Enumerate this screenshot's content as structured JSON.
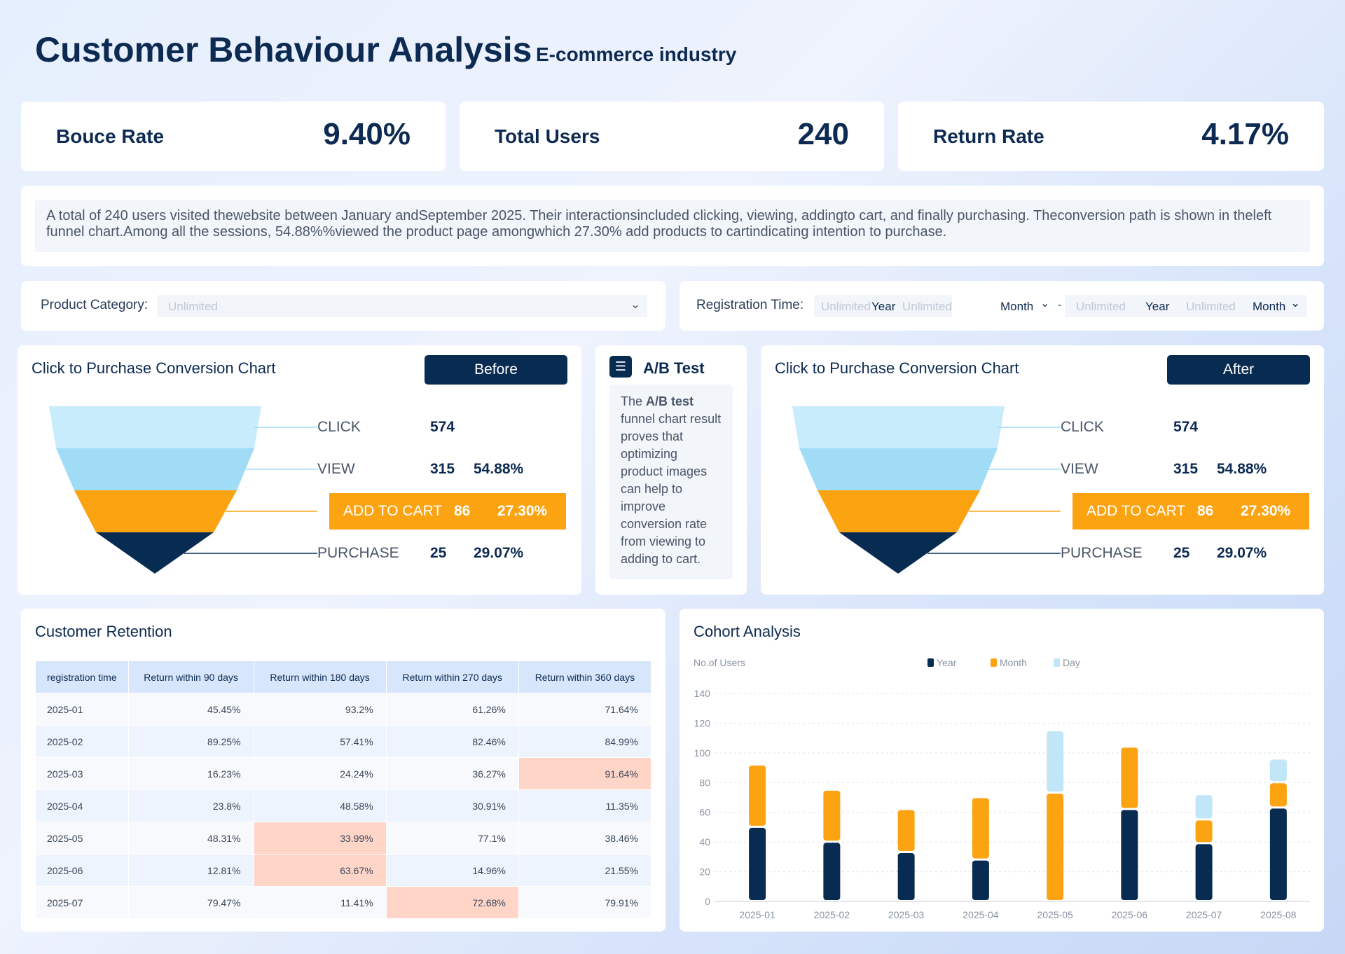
{
  "header": {
    "title": "Customer Behaviour Analysis",
    "subtitle": "E-commerce industry"
  },
  "kpis": [
    {
      "label": "Bouce Rate",
      "value": "9.40%"
    },
    {
      "label": "Total Users",
      "value": "240"
    },
    {
      "label": "Return Rate",
      "value": "4.17%"
    }
  ],
  "description": "A total of 240 users visited thewebsite between January andSeptember 2025. Their interactionsincluded clicking, viewing, addingto cart, and finally purchasing. Theconversion path is shown in theleft funnel chart.Among all the sessions, 54.88%%viewed the product page amongwhich 27.30% add products to cartindicating intention to purchase.",
  "filters": {
    "category_label": "Product Category:",
    "category_placeholder": "Unlimited",
    "reg_label": "Registration Time:",
    "range": [
      {
        "year_ph": "Unlimited",
        "year": "Year",
        "month_ph": "Unlimited",
        "month": "Month"
      },
      {
        "year_ph": "Unlimited",
        "year": "Year",
        "month_ph": "Unlimited",
        "month": "Month"
      }
    ],
    "dash": "-"
  },
  "funnels": [
    {
      "title": "Click to Purchase Conversion Chart",
      "button": "Before",
      "stages": [
        {
          "name": "CLICK",
          "count": "574",
          "rate": ""
        },
        {
          "name": "VIEW",
          "count": "315",
          "rate": "54.88%"
        },
        {
          "name": "ADD TO CART",
          "count": "86",
          "rate": "27.30%"
        },
        {
          "name": "PURCHASE",
          "count": "25",
          "rate": "29.07%"
        }
      ]
    },
    {
      "title": "Click to Purchase Conversion Chart",
      "button": "After",
      "stages": [
        {
          "name": "CLICK",
          "count": "574",
          "rate": ""
        },
        {
          "name": "VIEW",
          "count": "315",
          "rate": "54.88%"
        },
        {
          "name": "ADD TO CART",
          "count": "86",
          "rate": "27.30%"
        },
        {
          "name": "PURCHASE",
          "count": "25",
          "rate": "29.07%"
        }
      ]
    }
  ],
  "funnel_colors": [
    "#c9ecfc",
    "#a1dcf6",
    "#fca311",
    "#082b52"
  ],
  "abtest": {
    "title": "A/B Test",
    "icon": "sliders-icon",
    "text_pre": "The ",
    "text_bold": "A/B test",
    "text_post": " funnel chart result proves that optimizing product images can help to improve conversion rate from viewing to adding to cart."
  },
  "retention": {
    "title": "Customer Retention",
    "columns": [
      "registration time",
      "Return within 90 days",
      "Return within 180 days",
      "Return within 270 days",
      "Return within 360 days"
    ],
    "rows": [
      [
        "2025-01",
        "45.45%",
        "93.2%",
        "61.26%",
        "71.64%"
      ],
      [
        "2025-02",
        "89.25%",
        "57.41%",
        "82.46%",
        "84.99%"
      ],
      [
        "2025-03",
        "16.23%",
        "24.24%",
        "36.27%",
        "91.64%"
      ],
      [
        "2025-04",
        "23.8%",
        "48.58%",
        "30.91%",
        "11.35%"
      ],
      [
        "2025-05",
        "48.31%",
        "33.99%",
        "77.1%",
        "38.46%"
      ],
      [
        "2025-06",
        "12.81%",
        "63.67%",
        "14.96%",
        "21.55%"
      ],
      [
        "2025-07",
        "79.47%",
        "11.41%",
        "72.68%",
        "79.91%"
      ]
    ],
    "highlighted": [
      [
        2,
        4
      ],
      [
        4,
        2
      ],
      [
        5,
        2
      ],
      [
        6,
        3
      ]
    ]
  },
  "chart_data": {
    "type": "bar",
    "stacked": true,
    "title": "Cohort Analysis",
    "ylabel": "No.of Users",
    "ylim": [
      0,
      140
    ],
    "yticks": [
      0,
      20,
      40,
      60,
      80,
      100,
      120,
      140
    ],
    "grid": true,
    "legend": "top-center",
    "categories": [
      "2025-01",
      "2025-02",
      "2025-03",
      "2025-04",
      "2025-05",
      "2025-06",
      "2025-07",
      "2025-08"
    ],
    "series": [
      {
        "name": "Year",
        "color": "#082b52",
        "values": [
          50,
          40,
          33,
          28,
          0,
          62,
          39,
          63
        ]
      },
      {
        "name": "Month",
        "color": "#fca311",
        "values": [
          42,
          35,
          29,
          42,
          73,
          42,
          16,
          17
        ]
      },
      {
        "name": "Day",
        "color": "#c1e6f7",
        "values": [
          0,
          0,
          0,
          0,
          42,
          0,
          17,
          16
        ]
      }
    ]
  }
}
